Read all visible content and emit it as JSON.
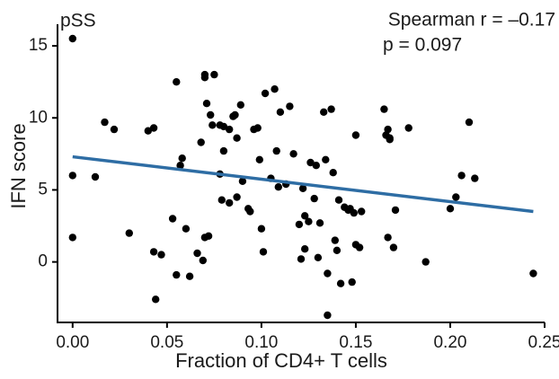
{
  "panel_label": "pSS",
  "stats": {
    "spearman": "Spearman r = –0.17",
    "p_value": "p = 0.097"
  },
  "colors": {
    "points": "#000000",
    "fit_line": "#2e6da4",
    "axes": "#000000"
  },
  "chart_data": {
    "type": "scatter",
    "title": "",
    "xlabel": "Fraction of CD4+ T cells",
    "ylabel": "IFN score",
    "xlim": [
      -0.008,
      0.25
    ],
    "ylim": [
      -4.2,
      16.5
    ],
    "x_ticks": [
      0.0,
      0.05,
      0.1,
      0.15,
      0.2,
      0.25
    ],
    "x_tick_labels": [
      "0.00",
      "0.05",
      "0.10",
      "0.15",
      "0.20",
      "0.25"
    ],
    "y_ticks": [
      0,
      5,
      10,
      15
    ],
    "y_tick_labels": [
      "0",
      "5",
      "10",
      "15"
    ],
    "grid": false,
    "legend": "none",
    "fit_line": {
      "x": [
        0.0,
        0.244
      ],
      "y": [
        7.3,
        3.5
      ]
    },
    "series": [
      {
        "points": [
          [
            0.0,
            15.5
          ],
          [
            0.0,
            6.0
          ],
          [
            0.0,
            1.7
          ],
          [
            0.012,
            5.9
          ],
          [
            0.017,
            9.7
          ],
          [
            0.022,
            9.2
          ],
          [
            0.03,
            2.0
          ],
          [
            0.04,
            9.1
          ],
          [
            0.043,
            9.3
          ],
          [
            0.043,
            0.7
          ],
          [
            0.044,
            -2.6
          ],
          [
            0.047,
            0.5
          ],
          [
            0.053,
            3.0
          ],
          [
            0.055,
            -0.9
          ],
          [
            0.055,
            12.5
          ],
          [
            0.057,
            6.7
          ],
          [
            0.058,
            7.2
          ],
          [
            0.06,
            2.3
          ],
          [
            0.062,
            -1.0
          ],
          [
            0.066,
            0.6
          ],
          [
            0.068,
            8.3
          ],
          [
            0.069,
            0.1
          ],
          [
            0.07,
            13.0
          ],
          [
            0.07,
            12.8
          ],
          [
            0.07,
            1.7
          ],
          [
            0.071,
            11.0
          ],
          [
            0.072,
            1.8
          ],
          [
            0.073,
            10.2
          ],
          [
            0.074,
            9.5
          ],
          [
            0.075,
            13.0
          ],
          [
            0.078,
            9.5
          ],
          [
            0.078,
            6.1
          ],
          [
            0.079,
            4.3
          ],
          [
            0.08,
            9.4
          ],
          [
            0.08,
            7.7
          ],
          [
            0.083,
            4.1
          ],
          [
            0.083,
            9.2
          ],
          [
            0.085,
            10.1
          ],
          [
            0.086,
            10.2
          ],
          [
            0.087,
            4.5
          ],
          [
            0.087,
            8.6
          ],
          [
            0.089,
            10.9
          ],
          [
            0.09,
            5.6
          ],
          [
            0.093,
            3.7
          ],
          [
            0.094,
            3.5
          ],
          [
            0.096,
            9.2
          ],
          [
            0.098,
            9.3
          ],
          [
            0.099,
            7.1
          ],
          [
            0.1,
            2.3
          ],
          [
            0.101,
            0.7
          ],
          [
            0.102,
            11.7
          ],
          [
            0.105,
            5.8
          ],
          [
            0.107,
            12.0
          ],
          [
            0.108,
            7.7
          ],
          [
            0.109,
            5.2
          ],
          [
            0.11,
            10.4
          ],
          [
            0.113,
            5.4
          ],
          [
            0.115,
            10.8
          ],
          [
            0.117,
            7.5
          ],
          [
            0.12,
            2.6
          ],
          [
            0.121,
            0.2
          ],
          [
            0.122,
            5.1
          ],
          [
            0.123,
            0.9
          ],
          [
            0.123,
            3.2
          ],
          [
            0.125,
            2.8
          ],
          [
            0.126,
            6.9
          ],
          [
            0.128,
            4.4
          ],
          [
            0.129,
            6.7
          ],
          [
            0.13,
            0.3
          ],
          [
            0.131,
            2.7
          ],
          [
            0.133,
            10.4
          ],
          [
            0.134,
            7.1
          ],
          [
            0.135,
            -0.8
          ],
          [
            0.135,
            -3.7
          ],
          [
            0.137,
            10.6
          ],
          [
            0.138,
            6.2
          ],
          [
            0.139,
            1.5
          ],
          [
            0.14,
            0.8
          ],
          [
            0.141,
            4.3
          ],
          [
            0.142,
            -1.5
          ],
          [
            0.144,
            3.8
          ],
          [
            0.146,
            3.6
          ],
          [
            0.147,
            3.7
          ],
          [
            0.148,
            -1.4
          ],
          [
            0.149,
            3.4
          ],
          [
            0.15,
            1.2
          ],
          [
            0.15,
            8.8
          ],
          [
            0.152,
            1.0
          ],
          [
            0.153,
            3.5
          ],
          [
            0.165,
            10.6
          ],
          [
            0.166,
            8.8
          ],
          [
            0.167,
            9.2
          ],
          [
            0.167,
            1.7
          ],
          [
            0.168,
            8.6
          ],
          [
            0.168,
            8.5
          ],
          [
            0.17,
            1.0
          ],
          [
            0.171,
            3.6
          ],
          [
            0.178,
            9.3
          ],
          [
            0.187,
            0.0
          ],
          [
            0.2,
            3.7
          ],
          [
            0.203,
            4.5
          ],
          [
            0.206,
            6.0
          ],
          [
            0.21,
            9.7
          ],
          [
            0.213,
            5.8
          ],
          [
            0.244,
            -0.8
          ]
        ]
      }
    ]
  }
}
